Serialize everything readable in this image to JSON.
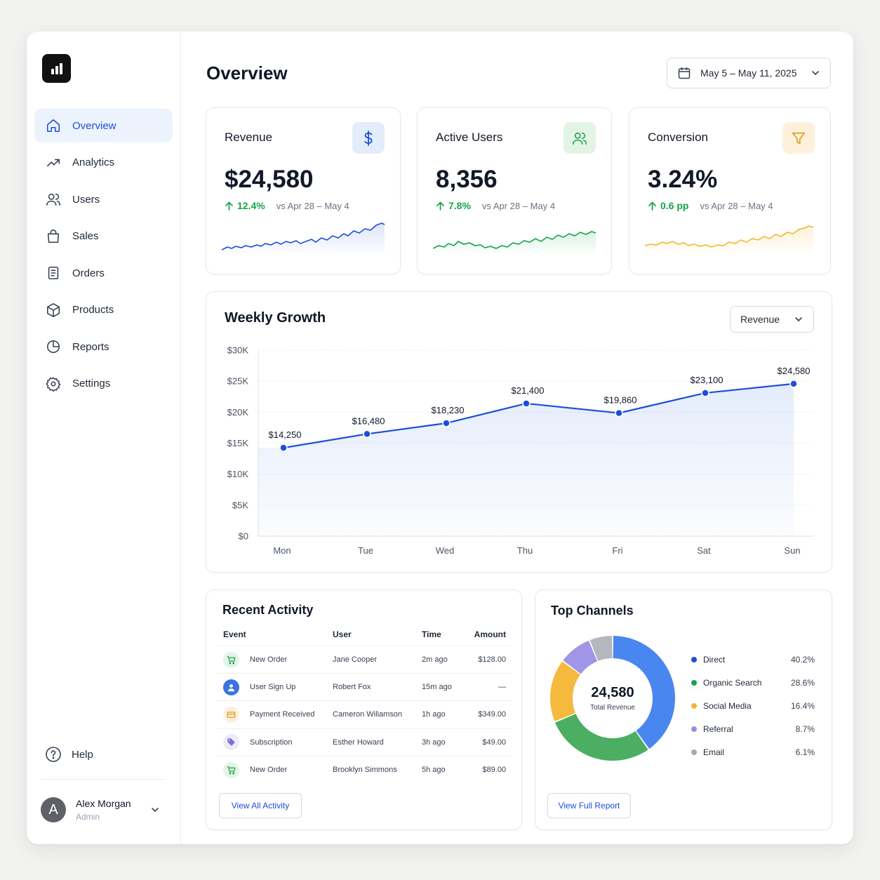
{
  "sidebar": {
    "items": [
      {
        "label": "Overview",
        "icon": "home-icon",
        "active": true
      },
      {
        "label": "Analytics",
        "icon": "trending-up-icon",
        "active": false
      },
      {
        "label": "Users",
        "icon": "users-icon",
        "active": false
      },
      {
        "label": "Sales",
        "icon": "shopping-bag-icon",
        "active": false
      },
      {
        "label": "Orders",
        "icon": "document-list-icon",
        "active": false
      },
      {
        "label": "Products",
        "icon": "box-icon",
        "active": false
      },
      {
        "label": "Reports",
        "icon": "pie-chart-icon",
        "active": false
      },
      {
        "label": "Settings",
        "icon": "gear-icon",
        "active": false
      }
    ],
    "help_label": "Help",
    "user": {
      "initial": "A",
      "name": "Alex Morgan",
      "role": "Admin"
    }
  },
  "header": {
    "title": "Overview",
    "date_range": "May 5 – May 11, 2025"
  },
  "kpis": [
    {
      "title": "Revenue",
      "value": "$24,580",
      "delta": "12.4%",
      "compare": "vs Apr 28 – May 4",
      "icon": "dollar-icon",
      "color": "#1d4ed8",
      "icon_bg": "#e3ecfb"
    },
    {
      "title": "Active Users",
      "value": "8,356",
      "delta": "7.8%",
      "compare": "vs Apr 28 – May 4",
      "icon": "users-icon",
      "color": "#16a34a",
      "icon_bg": "#e3f3e6"
    },
    {
      "title": "Conversion",
      "value": "3.24%",
      "delta": "0.6 pp",
      "compare": "vs Apr 28 – May 4",
      "icon": "funnel-icon",
      "color": "#f2b72c",
      "icon_bg": "#fdf1dc"
    }
  ],
  "weekly_growth": {
    "title": "Weekly Growth",
    "metric_select": "Revenue"
  },
  "chart_data": {
    "type": "line",
    "title": "Weekly Growth",
    "categories": [
      "Mon",
      "Tue",
      "Wed",
      "Thu",
      "Fri",
      "Sat",
      "Sun"
    ],
    "values": [
      14250,
      16480,
      18230,
      21400,
      19860,
      23100,
      24580
    ],
    "data_labels": [
      "$14,250",
      "$16,480",
      "$18,230",
      "$21,400",
      "$19,860",
      "$23,100",
      "$24,580"
    ],
    "y_ticks": [
      "$0",
      "$5K",
      "$10K",
      "$15K",
      "$20K",
      "$25K",
      "$30K"
    ],
    "ylim": [
      0,
      30000
    ],
    "grid": true,
    "color": "#1d4ed8"
  },
  "activity": {
    "title": "Recent Activity",
    "columns": [
      "Event",
      "User",
      "Time",
      "Amount"
    ],
    "rows": [
      {
        "event": "New Order",
        "user": "Jane Cooper",
        "time": "2m ago",
        "amount": "$128.00",
        "icon": "cart-icon",
        "icon_color": "#16a34a",
        "icon_bg": "#e3f3e6"
      },
      {
        "event": "User Sign Up",
        "user": "Robert Fox",
        "time": "15m ago",
        "amount": "—",
        "icon": "user-icon",
        "icon_color": "#ffffff",
        "icon_bg": "#3b73e0"
      },
      {
        "event": "Payment Received",
        "user": "Cameron Wiliamson",
        "time": "1h ago",
        "amount": "$349.00",
        "icon": "card-icon",
        "icon_color": "#d99a16",
        "icon_bg": "#fdf1dc"
      },
      {
        "event": "Subscription",
        "user": "Esther Howard",
        "time": "3h ago",
        "amount": "$49.00",
        "icon": "tag-icon",
        "icon_color": "#7c6ad6",
        "icon_bg": "#ecebfa"
      },
      {
        "event": "New Order",
        "user": "Brooklyn Simmons",
        "time": "5h ago",
        "amount": "$89.00",
        "icon": "cart-icon",
        "icon_color": "#16a34a",
        "icon_bg": "#e3f3e6"
      }
    ],
    "button_label": "View All Activity"
  },
  "channels": {
    "title": "Top Channels",
    "center_value": "24,580",
    "center_label": "Total Revenue",
    "items": [
      {
        "name": "Direct",
        "pct": "40.2%",
        "value": 40.2,
        "color": "#4a86ef"
      },
      {
        "name": "Organic Search",
        "pct": "28.6%",
        "value": 28.6,
        "color": "#4cae62"
      },
      {
        "name": "Social Media",
        "pct": "16.4%",
        "value": 16.4,
        "color": "#f5b93e"
      },
      {
        "name": "Referral",
        "pct": "8.7%",
        "value": 8.7,
        "color": "#a095e6"
      },
      {
        "name": "Email",
        "pct": "6.1%",
        "value": 6.1,
        "color": "#b4b7bd"
      }
    ],
    "button_label": "View Full Report"
  }
}
